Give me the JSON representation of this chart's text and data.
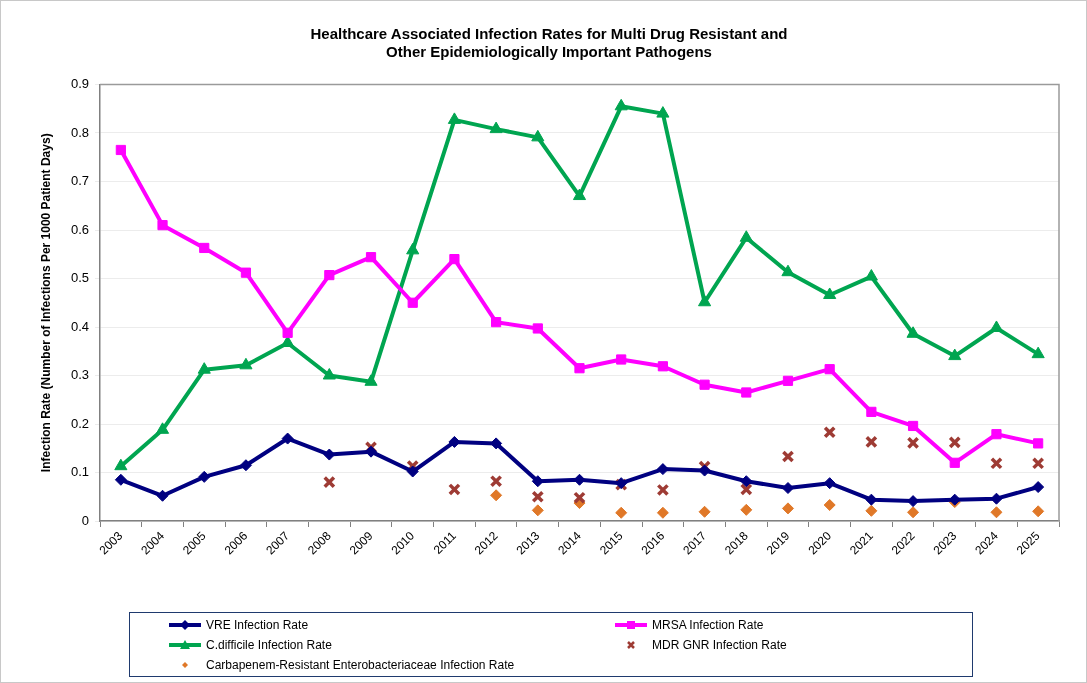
{
  "chart_data": {
    "type": "line",
    "title": "Healthcare Associated Infection Rates for Multi Drug Resistant and\nOther Epidemiologically Important Pathogens",
    "ylabel": "Infection Rate (Number of Infections Per 1000 Patient Days)",
    "categories": [
      "2003",
      "2004",
      "2005",
      "2006",
      "2007",
      "2008",
      "2009",
      "2010",
      "2011",
      "2012",
      "2013",
      "2014",
      "2015",
      "2016",
      "2017",
      "2018",
      "2019",
      "2020",
      "2021",
      "2022",
      "2023",
      "2024",
      "2025"
    ],
    "series": [
      {
        "name": "VRE Infection Rate",
        "type": "line",
        "marker": "diamond",
        "color": "#000080",
        "values": [
          0.085,
          0.052,
          0.091,
          0.115,
          0.17,
          0.137,
          0.143,
          0.102,
          0.163,
          0.16,
          0.082,
          0.085,
          0.078,
          0.107,
          0.104,
          0.082,
          0.068,
          0.078,
          0.044,
          0.041,
          0.044,
          0.046,
          0.07
        ]
      },
      {
        "name": "MRSA Infection Rate",
        "type": "line",
        "marker": "square",
        "color": "#ff00ff",
        "values": [
          0.765,
          0.61,
          0.563,
          0.512,
          0.388,
          0.507,
          0.544,
          0.45,
          0.54,
          0.41,
          0.397,
          0.315,
          0.333,
          0.319,
          0.281,
          0.265,
          0.289,
          0.313,
          0.225,
          0.196,
          0.12,
          0.179,
          0.16
        ]
      },
      {
        "name": "C.difficile Infection Rate",
        "type": "line",
        "marker": "triangle",
        "color": "#00a550",
        "values": [
          0.113,
          0.188,
          0.312,
          0.321,
          0.367,
          0.3,
          0.287,
          0.558,
          0.827,
          0.808,
          0.791,
          0.67,
          0.855,
          0.84,
          0.451,
          0.584,
          0.513,
          0.466,
          0.504,
          0.386,
          0.34,
          0.398,
          0.344
        ]
      },
      {
        "name": "MDR GNR Infection Rate",
        "type": "scatter",
        "marker": "cross",
        "color": "#9e3b34",
        "values": [
          null,
          null,
          null,
          null,
          null,
          0.08,
          0.152,
          0.113,
          0.065,
          0.082,
          0.05,
          0.048,
          0.075,
          0.064,
          0.112,
          0.065,
          0.133,
          0.183,
          0.163,
          0.161,
          0.162,
          0.119,
          0.119
        ]
      },
      {
        "name": "Carbapenem-Resistant Enterobacteriaceae Infection Rate",
        "type": "scatter",
        "marker": "diamond",
        "color": "#e07828",
        "values": [
          null,
          null,
          null,
          null,
          null,
          null,
          null,
          null,
          null,
          0.053,
          0.022,
          0.037,
          0.017,
          0.017,
          0.019,
          0.023,
          0.026,
          0.033,
          0.021,
          0.018,
          0.039,
          0.018,
          0.02
        ]
      }
    ],
    "ylim": [
      0,
      0.9
    ],
    "yticks": [
      0,
      0.1,
      0.2,
      0.3,
      0.4,
      0.5,
      0.6,
      0.7,
      0.8,
      0.9
    ],
    "grid": "y",
    "legend": "bottom",
    "line_style": "solid"
  }
}
